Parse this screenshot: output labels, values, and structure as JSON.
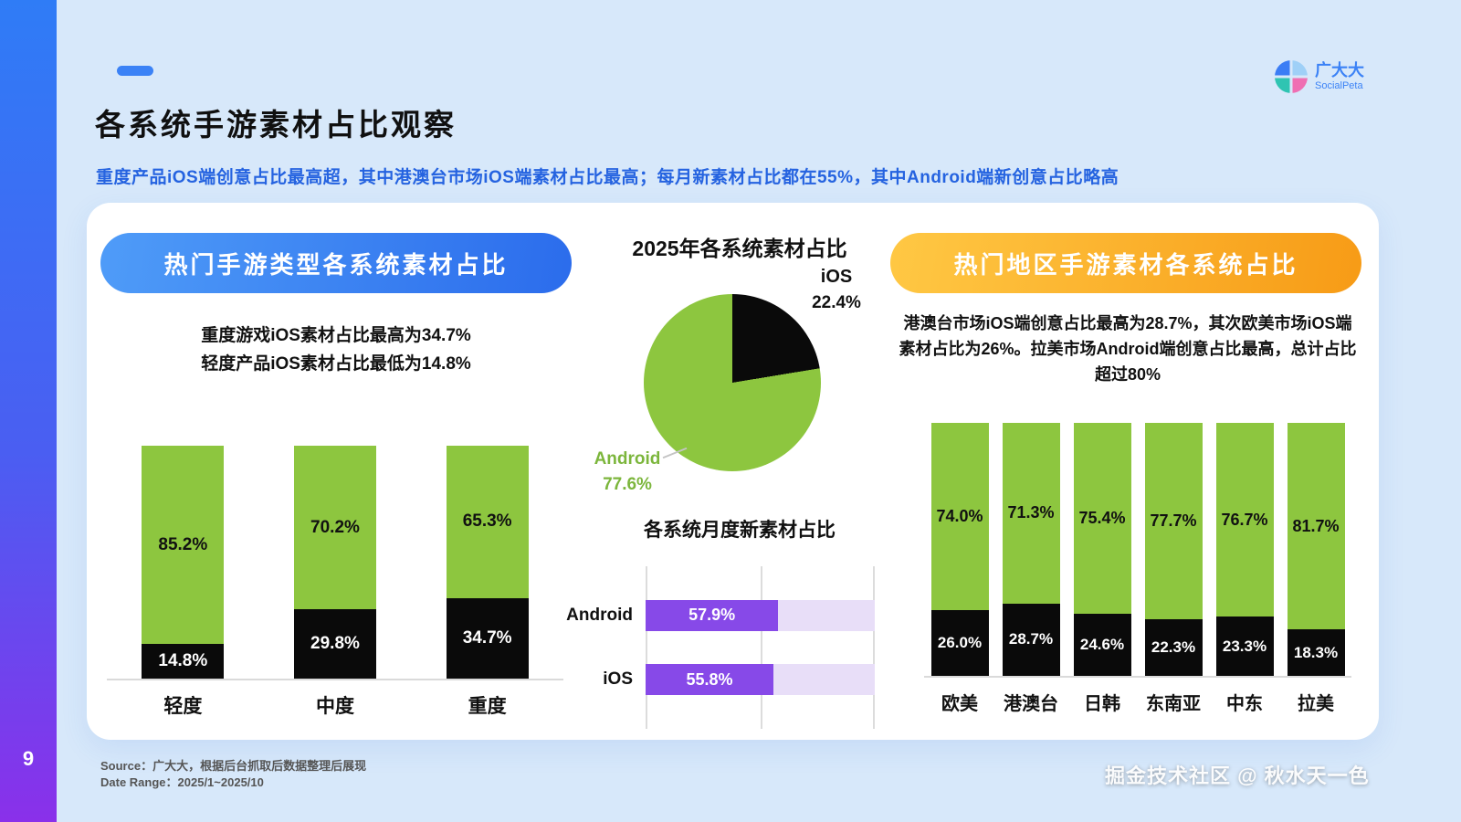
{
  "page": {
    "number": "9",
    "title": "各系统手游素材占比观察",
    "subtitle": "重度产品iOS端创意占比最高超，其中港澳台市场iOS端素材占比最高；每月新素材占比都在55%，其中Android端新创意占比略高",
    "source": "Source：广大大，根据后台抓取后数据整理后展现",
    "date_range": "Date Range：2025/1~2025/10",
    "watermark": "掘金技术社区 @ 秋水天一色"
  },
  "logo": {
    "name": "广大大",
    "subtitle": "SocialPeta"
  },
  "left_panel": {
    "header": "热门手游类型各系统素材占比",
    "note_line1": "重度游戏iOS素材占比最高为34.7%",
    "note_line2": "轻度产品iOS素材占比最低为14.8%"
  },
  "middle_panel": {
    "pie_title": "2025年各系统素材占比",
    "ios_label": "iOS",
    "ios_value": "22.4%",
    "android_label": "Android",
    "android_value": "77.6%",
    "hbar_title": "各系统月度新素材占比"
  },
  "right_panel": {
    "header": "热门地区手游素材各系统占比",
    "note": "港澳台市场iOS端创意占比最高为28.7%，其次欧美市场iOS端素材占比为26%。拉美市场Android端创意占比最高，总计占比超过80%"
  },
  "colors": {
    "android_green": "#8dc63f",
    "ios_black": "#0a0a0a",
    "purple": "#8749e8",
    "purple_light": "#e8def8",
    "accent_blue": "#2f7cf6",
    "accent_orange": "#f79b16",
    "background": "#d7e8fa"
  },
  "chart_data": [
    {
      "type": "bar",
      "stacked": true,
      "title": "热门手游类型各系统素材占比",
      "categories": [
        "轻度",
        "中度",
        "重度"
      ],
      "series": [
        {
          "name": "Android",
          "color": "#8dc63f",
          "values": [
            85.2,
            70.2,
            65.3
          ]
        },
        {
          "name": "iOS",
          "color": "#0a0a0a",
          "values": [
            14.8,
            29.8,
            34.7
          ]
        }
      ],
      "unit": "%",
      "ylim": [
        0,
        100
      ]
    },
    {
      "type": "pie",
      "title": "2025年各系统素材占比",
      "labels": [
        "iOS",
        "Android"
      ],
      "values": [
        22.4,
        77.6
      ],
      "colors": [
        "#0a0a0a",
        "#8dc63f"
      ]
    },
    {
      "type": "bar",
      "orientation": "horizontal",
      "title": "各系统月度新素材占比",
      "categories": [
        "Android",
        "iOS"
      ],
      "values": [
        57.9,
        55.8
      ],
      "xlim": [
        0,
        100
      ],
      "color": "#8749e8"
    },
    {
      "type": "bar",
      "stacked": true,
      "title": "热门地区手游素材各系统占比",
      "categories": [
        "欧美",
        "港澳台",
        "日韩",
        "东南亚",
        "中东",
        "拉美"
      ],
      "series": [
        {
          "name": "Android",
          "color": "#8dc63f",
          "values": [
            74.0,
            71.3,
            75.4,
            77.7,
            76.7,
            81.7
          ]
        },
        {
          "name": "iOS",
          "color": "#0a0a0a",
          "values": [
            26.0,
            28.7,
            24.6,
            22.3,
            23.3,
            18.3
          ]
        }
      ],
      "unit": "%",
      "ylim": [
        0,
        100
      ]
    }
  ]
}
